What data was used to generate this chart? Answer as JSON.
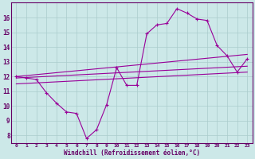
{
  "xlabel": "Windchill (Refroidissement éolien,°C)",
  "background_color": "#cce8e8",
  "line_color": "#990099",
  "grid_color": "#aacccc",
  "text_color": "#660066",
  "spine_color": "#336699",
  "xlim": [
    -0.5,
    23.5
  ],
  "ylim": [
    7.5,
    17.0
  ],
  "xtick_vals": [
    0,
    1,
    2,
    3,
    4,
    5,
    6,
    7,
    8,
    9,
    10,
    11,
    12,
    13,
    14,
    15,
    16,
    17,
    18,
    19,
    20,
    21,
    22,
    23
  ],
  "xtick_labels": [
    "0",
    "1",
    "2",
    "3",
    "4",
    "5",
    "6",
    "7",
    "8",
    "9",
    "10",
    "11",
    "12",
    "13",
    "14",
    "15",
    "16",
    "17",
    "18",
    "19",
    "20",
    "21",
    "22",
    "23"
  ],
  "ytick_vals": [
    8,
    9,
    10,
    11,
    12,
    13,
    14,
    15,
    16
  ],
  "ytick_labels": [
    "8",
    "9",
    "10",
    "11",
    "12",
    "13",
    "14",
    "15",
    "16"
  ],
  "series1_x": [
    0,
    1,
    2,
    3,
    4,
    5,
    6,
    7,
    8,
    9,
    10,
    11,
    12,
    13,
    14,
    15,
    16,
    17,
    18,
    19,
    20,
    21,
    22,
    23
  ],
  "series1_y": [
    12.0,
    11.9,
    11.8,
    10.9,
    10.2,
    9.6,
    9.5,
    7.8,
    8.4,
    10.1,
    12.6,
    11.4,
    11.4,
    14.9,
    15.5,
    15.6,
    16.6,
    16.3,
    15.9,
    15.8,
    14.1,
    13.4,
    12.3,
    13.2
  ],
  "line2_x": [
    0,
    23
  ],
  "line2_y": [
    12.0,
    13.5
  ],
  "line3_x": [
    0,
    23
  ],
  "line3_y": [
    11.5,
    12.3
  ],
  "line4_x": [
    0,
    23
  ],
  "line4_y": [
    11.9,
    12.7
  ]
}
